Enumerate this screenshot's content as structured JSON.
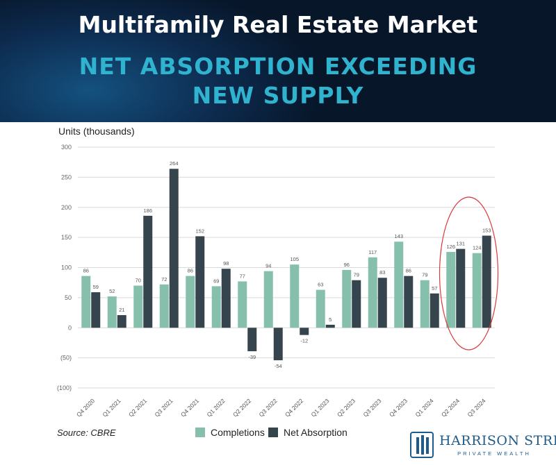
{
  "header": {
    "title": "Multifamily Real Estate Market",
    "subtitle_line1": "NET ABSORPTION EXCEEDING",
    "subtitle_line2": "NEW SUPPLY"
  },
  "source": "Source: CBRE",
  "logo": {
    "name": "HARRISON STREET",
    "tagline": "PRIVATE WEALTH"
  },
  "colors": {
    "completions": "#86c0ac",
    "net_absorption": "#36444e",
    "title_accent": "#2fb3cf",
    "highlight": "#d93a3a"
  },
  "chart_data": {
    "type": "bar",
    "ylabel": "Units (thousands)",
    "ylim": [
      -100,
      300
    ],
    "yticks": [
      300,
      250,
      200,
      150,
      100,
      50,
      0,
      -50,
      -100
    ],
    "ytick_labels": [
      "300",
      "250",
      "200",
      "150",
      "100",
      "50",
      "0",
      "(50)",
      "(100)"
    ],
    "grid": true,
    "categories": [
      "Q4 2020",
      "Q1 2021",
      "Q2 2021",
      "Q3 2021",
      "Q4 2021",
      "Q1 2022",
      "Q2 2022",
      "Q3 2022",
      "Q4 2022",
      "Q1 2023",
      "Q2 2023",
      "Q3 2023",
      "Q4 2023",
      "Q1 2024",
      "Q2 2024",
      "Q3 2024"
    ],
    "series": [
      {
        "name": "Completions",
        "values": [
          86,
          52,
          70,
          72,
          86,
          69,
          77,
          94,
          105,
          63,
          96,
          117,
          143,
          79,
          126,
          124
        ]
      },
      {
        "name": "Net Absorption",
        "values": [
          59,
          21,
          186,
          264,
          152,
          98,
          -39,
          -54,
          -12,
          5,
          79,
          83,
          86,
          57,
          131,
          153
        ]
      }
    ],
    "legend_position": "bottom",
    "annotation": "red ellipse highlighting Q2 2024 and Q3 2024"
  }
}
